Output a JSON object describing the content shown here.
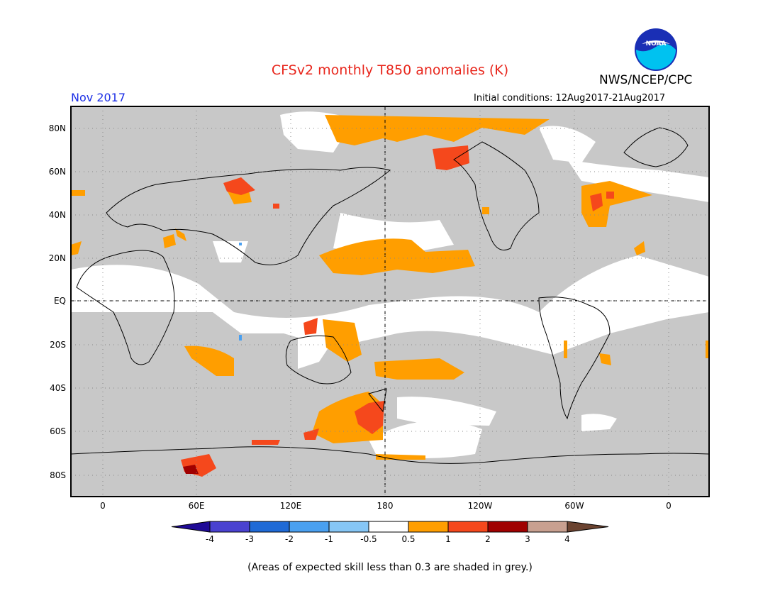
{
  "title": "CFSv2 monthly T850 anomalies (K)",
  "org": "NWS/NCEP/CPC",
  "logo_text": "NOAA",
  "month": "Nov 2017",
  "initial_conditions": "Initial conditions: 12Aug2017-21Aug2017",
  "footnote": "(Areas of expected skill less than 0.3 are shaded in grey.)",
  "colors": {
    "grey": "#c8c8c8",
    "c_n4": "#1f0a96",
    "c_n3": "#4a42d0",
    "c_n2": "#1f6ad6",
    "c_n1": "#4aa0f0",
    "c_n05": "#86c6f5",
    "c_0": "#ffffff",
    "c_05": "#ff9e00",
    "c_1": "#f5481c",
    "c_2": "#a00000",
    "c_3": "#c8a090",
    "c_4": "#6b4330"
  },
  "map": {
    "lat_labels": [
      "80N",
      "60N",
      "40N",
      "20N",
      "EQ",
      "20S",
      "40S",
      "60S",
      "80S"
    ],
    "lon_labels": [
      "0",
      "60E",
      "120E",
      "180",
      "120W",
      "60W",
      "0"
    ]
  },
  "legend": {
    "labels": [
      "-4",
      "-3",
      "-2",
      "-1",
      "-0.5",
      "0.5",
      "1",
      "2",
      "3",
      "4"
    ]
  }
}
